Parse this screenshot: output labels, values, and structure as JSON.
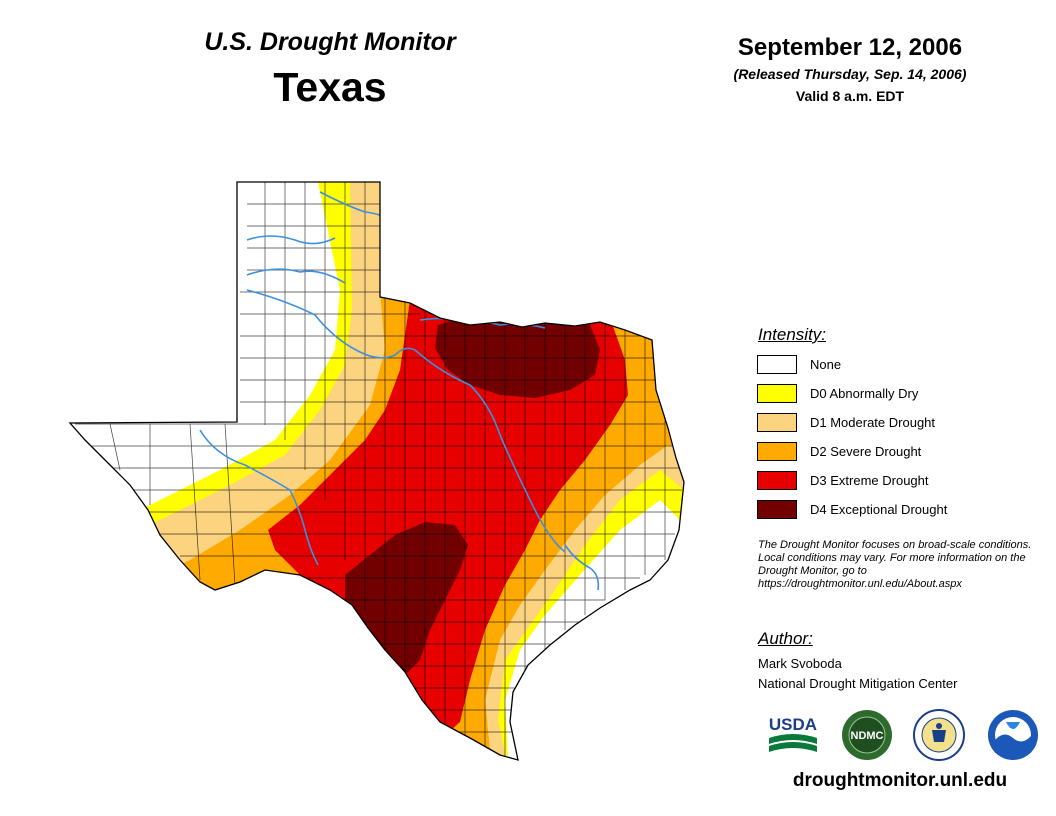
{
  "header": {
    "title": "U.S. Drought Monitor",
    "state": "Texas",
    "date": "September 12, 2006",
    "released": "(Released Thursday, Sep. 14, 2006)",
    "valid": "Valid 8 a.m. EDT"
  },
  "legend": {
    "title": "Intensity:",
    "items": [
      {
        "label": "None",
        "color": "#ffffff"
      },
      {
        "label": "D0 Abnormally Dry",
        "color": "#ffff00"
      },
      {
        "label": "D1 Moderate Drought",
        "color": "#fcd37f"
      },
      {
        "label": "D2 Severe Drought",
        "color": "#ffaa00"
      },
      {
        "label": "D3 Extreme Drought",
        "color": "#e60000"
      },
      {
        "label": "D4 Exceptional Drought",
        "color": "#730000"
      }
    ]
  },
  "note": "The Drought Monitor focuses on broad-scale conditions. Local conditions may vary. For more information on the Drought Monitor, go to https://droughtmonitor.unl.edu/About.aspx",
  "author": {
    "title": "Author:",
    "name": "Mark Svoboda",
    "org": "National Drought Mitigation Center"
  },
  "logos": {
    "usda": "USDA",
    "ndmc": "NDMC"
  },
  "url": "droughtmonitor.unl.edu",
  "colors": {
    "river": "#3d8fe0",
    "county_lines": "#000000"
  }
}
